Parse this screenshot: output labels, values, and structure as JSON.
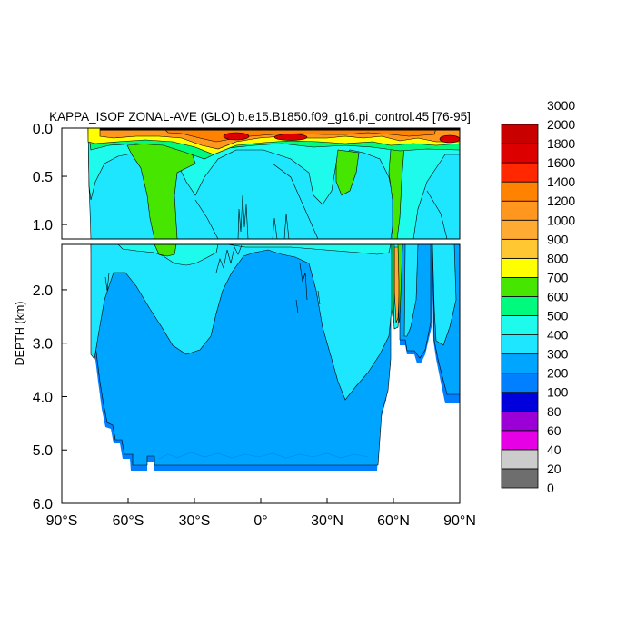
{
  "chart_data": {
    "type": "heatmap",
    "title": "KAPPA_ISOP ZONAL-AVE (GLO) b.e15.B1850.f09_g16.pi_control.45 [76-95]",
    "xlabel": "",
    "ylabel": "DEPTH (km)",
    "xlim": [
      -90,
      90
    ],
    "xticks": [
      {
        "value": -90,
        "label": "90°S"
      },
      {
        "value": -60,
        "label": "60°S"
      },
      {
        "value": -30,
        "label": "30°S"
      },
      {
        "value": 0,
        "label": "0°"
      },
      {
        "value": 30,
        "label": "30°N"
      },
      {
        "value": 60,
        "label": "60°N"
      },
      {
        "value": 90,
        "label": "90°N"
      }
    ],
    "upper_panel": {
      "ylim": [
        0.0,
        1.15
      ],
      "yticks": [
        "0.0",
        "0.5",
        "1.0"
      ],
      "yvalues": [
        0.0,
        0.5,
        1.0
      ]
    },
    "lower_panel": {
      "ylim": [
        1.15,
        6.0
      ],
      "yticks": [
        "2.0",
        "3.0",
        "4.0",
        "5.0",
        "6.0"
      ],
      "yvalues": [
        2.0,
        3.0,
        4.0,
        5.0,
        6.0
      ]
    },
    "colorbar": {
      "levels": [
        "0",
        "20",
        "40",
        "60",
        "80",
        "100",
        "200",
        "300",
        "400",
        "500",
        "600",
        "700",
        "800",
        "900",
        "1000",
        "1200",
        "1400",
        "1600",
        "1800",
        "2000",
        "3000"
      ],
      "colors": [
        "#6e6e6e",
        "#cccccc",
        "#e600e6",
        "#9b00d7",
        "#0000dc",
        "#0080ff",
        "#00a5ff",
        "#1ee6ff",
        "#1efaeb",
        "#00fa7d",
        "#46e600",
        "#ffff00",
        "#ffc832",
        "#ffaa32",
        "#ff961e",
        "#ff8200",
        "#ff2800",
        "#dc0000",
        "#c80000"
      ]
    },
    "regions": [
      {
        "name": "deep-blue",
        "level": 300,
        "color": "#00a5ff"
      },
      {
        "name": "intermediate-cyan",
        "level": 400,
        "color": "#1ee6ff"
      },
      {
        "name": "upper-aqua",
        "level": 500,
        "color": "#1efaeb"
      },
      {
        "name": "southern-green",
        "level": 700,
        "color": "#46e600"
      },
      {
        "name": "surface-orange",
        "level": 1400,
        "color": "#ff961e"
      },
      {
        "name": "surface-red",
        "level": 2000,
        "color": "#dc0000"
      }
    ]
  }
}
